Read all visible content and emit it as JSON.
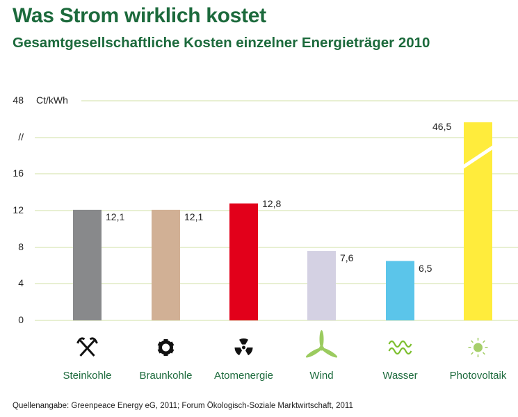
{
  "title": "Was Strom wirklich kostet",
  "subtitle": "Gesamtgesellschaftliche Kosten einzelner Energieträger 2010",
  "source": "Quellenangabe: Greenpeace Energy eG, 2011; Forum Ökologisch-Soziale Marktwirtschaft, 2011",
  "chart_data": {
    "type": "bar",
    "title": "Was Strom wirklich kostet",
    "subtitle": "Gesamtgesellschaftliche Kosten einzelner Energieträger 2010",
    "ylabel": "Ct/kWh",
    "ylim": [
      0,
      48
    ],
    "axis_break": true,
    "y_ticks": [
      "0",
      "4",
      "8",
      "12",
      "16",
      "//",
      "48"
    ],
    "grid": true,
    "categories": [
      "Steinkohle",
      "Braunkohle",
      "Atomenergie",
      "Wind",
      "Wasser",
      "Photovoltaik"
    ],
    "values": [
      12.1,
      12.1,
      12.8,
      7.6,
      6.5,
      46.5
    ],
    "value_labels": [
      "12,1",
      "12,1",
      "12,8",
      "7,6",
      "6,5",
      "46,5"
    ],
    "colors": [
      "#88898b",
      "#d1b095",
      "#e2001a",
      "#d4d1e3",
      "#5bc5ea",
      "#ffec3c"
    ],
    "icons": [
      "hammer-pick-icon",
      "gear-icon",
      "radiation-icon",
      "wind-turbine-icon",
      "water-waves-icon",
      "sun-icon"
    ],
    "grid_color": "#d9e8b8",
    "text_color": "#1c6a3c"
  }
}
